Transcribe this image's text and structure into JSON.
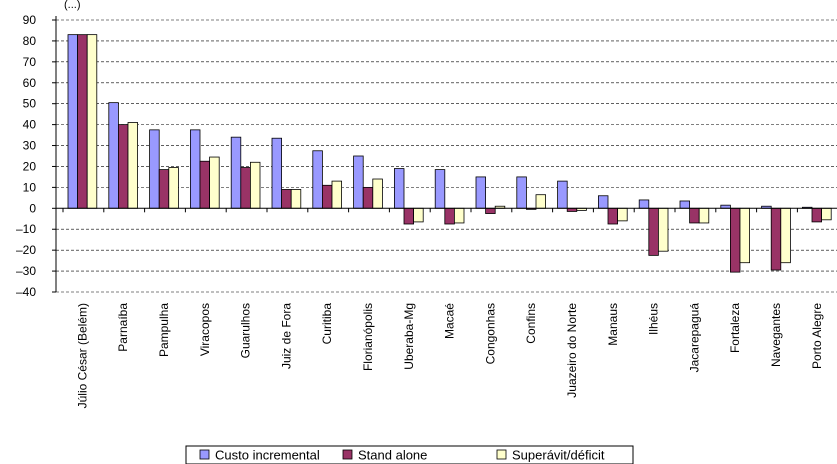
{
  "chart_data": {
    "type": "bar",
    "header": "(...)",
    "categories": [
      "Júlio César (Belém)",
      "Parnaíba",
      "Pampulha",
      "Viracopos",
      "Guarulhos",
      "Juiz de Fora",
      "Curitiba",
      "Florianópolis",
      "Uberaba-Mg",
      "Macaé",
      "Congonhas",
      "Confins",
      "Juazeiro do Norte",
      "Manaus",
      "Ilhéus",
      "Jacarepaguá",
      "Fortaleza",
      "Navegantes",
      "Porto Alegre"
    ],
    "series": [
      {
        "name": "Custo incremental",
        "color": "#9999ff",
        "values": [
          83,
          50.5,
          37.5,
          37.5,
          34,
          33.5,
          27.5,
          25,
          19,
          18.5,
          15,
          15,
          13,
          6,
          4,
          3.5,
          1.5,
          1,
          0.5
        ]
      },
      {
        "name": "Stand alone",
        "color": "#993366",
        "values": [
          83,
          40,
          18.5,
          22.5,
          19.5,
          9,
          11,
          10,
          -7.5,
          -7.5,
          -2.5,
          -0.5,
          -1.5,
          -7.5,
          -22.5,
          -7,
          -30.5,
          -29.5,
          -6.5
        ]
      },
      {
        "name": "Superávit/déficit",
        "color": "#ffffcc",
        "values": [
          83,
          41,
          19.5,
          24.5,
          22,
          9,
          13,
          14,
          -6.5,
          -7,
          1,
          6.5,
          -1,
          -6,
          -20.5,
          -7,
          -26,
          -26,
          -5.5
        ]
      }
    ],
    "ylim": [
      -40,
      90
    ],
    "yticks": [
      "90",
      "80",
      "70",
      "60",
      "50",
      "40",
      "30",
      "20",
      "10",
      "0",
      "–10",
      "–20",
      "–30",
      "–40"
    ],
    "grid": "horizontal dashed",
    "legend_position": "bottom"
  }
}
